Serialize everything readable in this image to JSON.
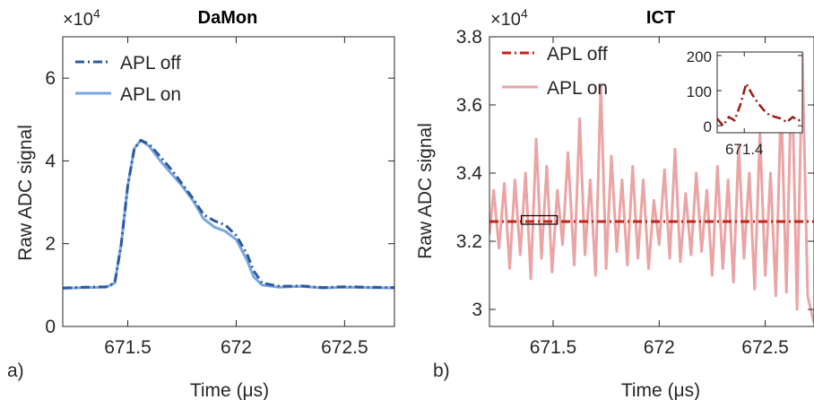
{
  "panels": [
    {
      "id": "a",
      "panel_label": "a)",
      "title": "DaMon",
      "xlabel": "Time (μs)",
      "ylabel": "Raw ADC signal",
      "exponent_label": "×10",
      "exponent_power": "4",
      "legend": [
        "APL off",
        "APL on"
      ]
    },
    {
      "id": "b",
      "panel_label": "b)",
      "title": "ICT",
      "xlabel": "Time (μs)",
      "ylabel": "Raw ADC signal",
      "exponent_label": "×10",
      "exponent_power": "4",
      "legend": [
        "APL off",
        "APL on"
      ]
    }
  ],
  "chart_data": [
    {
      "type": "line",
      "title": "DaMon",
      "xlabel": "Time (μs)",
      "ylabel": "Raw ADC signal",
      "y_scale_factor": "×10^4",
      "xlim": [
        671.2,
        672.73
      ],
      "ylim": [
        0,
        7
      ],
      "xticks": [
        671.5,
        672,
        672.5
      ],
      "xtick_labels": [
        "671.5",
        "672",
        "672.5"
      ],
      "yticks": [
        0,
        2,
        4,
        6
      ],
      "ytick_labels": [
        "0",
        "2",
        "4",
        "6"
      ],
      "legend_position": "top-left",
      "series": [
        {
          "name": "APL off",
          "color": "#2c5aa0",
          "style": "dash-dot",
          "x": [
            671.2,
            671.3,
            671.4,
            671.44,
            671.47,
            671.5,
            671.53,
            671.56,
            671.6,
            671.65,
            671.7,
            671.75,
            671.8,
            671.85,
            671.9,
            671.95,
            672.0,
            672.05,
            672.08,
            672.12,
            672.2,
            672.3,
            672.4,
            672.5,
            672.6,
            672.73
          ],
          "y": [
            0.93,
            0.95,
            0.96,
            1.05,
            2.0,
            3.4,
            4.3,
            4.5,
            4.4,
            4.1,
            3.8,
            3.45,
            3.1,
            2.7,
            2.55,
            2.45,
            2.2,
            1.75,
            1.35,
            1.05,
            0.97,
            0.98,
            0.94,
            0.96,
            0.95,
            0.94
          ]
        },
        {
          "name": "APL on",
          "color": "#7ba6e0",
          "style": "solid",
          "x": [
            671.2,
            671.3,
            671.4,
            671.44,
            671.47,
            671.5,
            671.53,
            671.56,
            671.6,
            671.65,
            671.7,
            671.75,
            671.8,
            671.85,
            671.9,
            671.95,
            672.0,
            672.05,
            672.08,
            672.12,
            672.2,
            672.3,
            672.4,
            672.5,
            672.6,
            672.73
          ],
          "y": [
            0.92,
            0.94,
            0.95,
            1.05,
            2.0,
            3.4,
            4.3,
            4.5,
            4.35,
            4.0,
            3.7,
            3.4,
            3.05,
            2.6,
            2.4,
            2.3,
            2.1,
            1.6,
            1.2,
            1.0,
            0.95,
            0.97,
            0.93,
            0.95,
            0.94,
            0.93
          ]
        }
      ]
    },
    {
      "type": "line",
      "title": "ICT",
      "xlabel": "Time (μs)",
      "ylabel": "Raw ADC signal",
      "y_scale_factor": "×10^4",
      "xlim": [
        671.2,
        672.73
      ],
      "ylim": [
        2.95,
        3.8
      ],
      "xticks": [
        671.5,
        672,
        672.5
      ],
      "xtick_labels": [
        "671.5",
        "672",
        "672.5"
      ],
      "yticks": [
        3,
        3.2,
        3.4,
        3.6,
        3.8
      ],
      "ytick_labels": [
        "3",
        "3.2",
        "3.4",
        "3.6",
        "3.8"
      ],
      "legend_position": "top-left",
      "zoom_box": {
        "x": [
          671.35,
          671.52
        ],
        "y": [
          3.25,
          3.275
        ]
      },
      "series": [
        {
          "name": "APL off",
          "color": "#c0261d",
          "style": "dash-dot",
          "x": [
            671.2,
            672.73
          ],
          "y": [
            3.258,
            3.258
          ]
        },
        {
          "name": "APL on",
          "color": "#eba4a4",
          "style": "solid",
          "x": [
            671.2,
            671.22,
            671.245,
            671.27,
            671.295,
            671.32,
            671.345,
            671.37,
            671.395,
            671.42,
            671.445,
            671.47,
            671.495,
            671.52,
            671.545,
            671.57,
            671.6,
            671.625,
            671.65,
            671.675,
            671.7,
            671.725,
            671.75,
            671.775,
            671.8,
            671.825,
            671.85,
            671.875,
            671.9,
            671.925,
            671.95,
            671.975,
            672.0,
            672.025,
            672.05,
            672.075,
            672.1,
            672.125,
            672.15,
            672.175,
            672.2,
            672.225,
            672.25,
            672.275,
            672.3,
            672.325,
            672.35,
            672.375,
            672.4,
            672.425,
            672.45,
            672.475,
            672.5,
            672.525,
            672.55,
            672.575,
            672.6,
            672.625,
            672.65,
            672.675,
            672.7,
            672.73
          ],
          "y": [
            3.22,
            3.35,
            3.18,
            3.37,
            3.12,
            3.38,
            3.16,
            3.4,
            3.09,
            3.5,
            3.15,
            3.42,
            3.11,
            3.35,
            3.19,
            3.46,
            3.13,
            3.56,
            3.16,
            3.38,
            3.1,
            3.66,
            3.12,
            3.45,
            3.17,
            3.38,
            3.13,
            3.42,
            3.15,
            3.38,
            3.12,
            3.32,
            3.19,
            3.41,
            3.15,
            3.47,
            3.14,
            3.34,
            3.16,
            3.4,
            3.17,
            3.35,
            3.1,
            3.42,
            3.12,
            3.38,
            3.08,
            3.48,
            3.15,
            3.4,
            3.06,
            3.52,
            3.1,
            3.4,
            3.04,
            3.62,
            3.05,
            3.72,
            3.0,
            3.75,
            3.04,
            2.96
          ]
        }
      ]
    },
    {
      "type": "line",
      "title": "",
      "role": "inset of ICT panel",
      "xlim": [
        671.33,
        671.55
      ],
      "ylim": [
        -20,
        210
      ],
      "xticks": [
        671.4
      ],
      "xtick_labels": [
        "671.4"
      ],
      "yticks": [
        0,
        100,
        200
      ],
      "ytick_labels": [
        "0",
        "100",
        "200"
      ],
      "series": [
        {
          "name": "APL off",
          "color": "#9b1c12",
          "style": "dash-dot",
          "x": [
            671.33,
            671.345,
            671.36,
            671.375,
            671.39,
            671.405,
            671.42,
            671.435,
            671.45,
            671.465,
            671.48,
            671.495,
            671.51,
            671.525,
            671.54,
            671.55
          ],
          "y": [
            20,
            0,
            25,
            15,
            60,
            120,
            90,
            65,
            45,
            30,
            25,
            20,
            10,
            25,
            15,
            20
          ]
        }
      ]
    }
  ]
}
